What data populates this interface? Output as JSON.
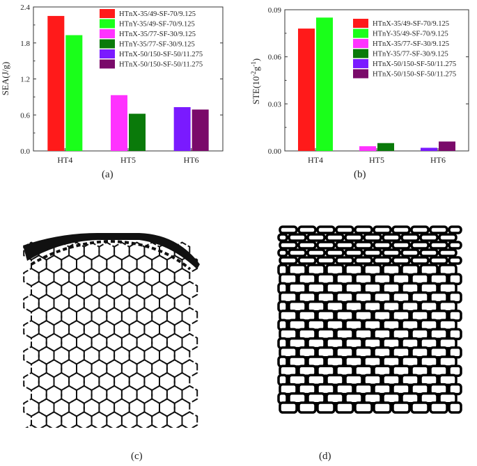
{
  "chart_data": [
    {
      "type": "bar",
      "panel": "(a)",
      "ylabel": "SEA(J/g)",
      "xlabel": "",
      "ylim": [
        0,
        2.4
      ],
      "yticks": [
        "0.0",
        "0.6",
        "1.2",
        "1.8",
        "2.4"
      ],
      "categories": [
        "HT4",
        "HT5",
        "HT6"
      ],
      "series": [
        {
          "name": "HTnX-35/49-SF-70/9.125",
          "color": "#ff1a1a",
          "group": "HT4",
          "value": 2.25
        },
        {
          "name": "HTnY-35/49-SF-70/9.125",
          "color": "#1aff1a",
          "group": "HT4",
          "value": 1.93
        },
        {
          "name": "HTnX-35/77-SF-30/9.125",
          "color": "#ff33ff",
          "group": "HT5",
          "value": 0.93
        },
        {
          "name": "HTnY-35/77-SF-30/9.125",
          "color": "#0a7a0a",
          "group": "HT5",
          "value": 0.62
        },
        {
          "name": "HTnX-50/150-SF-50/11.275",
          "color": "#7a1aff",
          "group": "HT6",
          "value": 0.73
        },
        {
          "name": "HTnX-50/150-SF-50/11.275",
          "color": "#7a0a6a",
          "group": "HT6",
          "value": 0.69
        }
      ]
    },
    {
      "type": "bar",
      "panel": "(b)",
      "ylabel_main": "STE(10",
      "ylabel_sup1": "-2",
      "ylabel_mid": "g",
      "ylabel_sup2": "-1",
      "ylabel_end": ")",
      "xlabel": "",
      "ylim": [
        0,
        0.09
      ],
      "yticks": [
        "0.00",
        "0.03",
        "0.06",
        "0.09"
      ],
      "categories": [
        "HT4",
        "HT5",
        "HT6"
      ],
      "series": [
        {
          "name": "HTnX-35/49-SF-70/9.125",
          "color": "#ff1a1a",
          "group": "HT4",
          "value": 0.078
        },
        {
          "name": "HTnY-35/49-SF-70/9.125",
          "color": "#1aff1a",
          "group": "HT4",
          "value": 0.085
        },
        {
          "name": "HTnX-35/77-SF-30/9.125",
          "color": "#ff33ff",
          "group": "HT5",
          "value": 0.003
        },
        {
          "name": "HTnY-35/77-SF-30/9.125",
          "color": "#0a7a0a",
          "group": "HT5",
          "value": 0.005
        },
        {
          "name": "HTnX-50/150-SF-50/11.275",
          "color": "#7a1aff",
          "group": "HT6",
          "value": 0.002
        },
        {
          "name": "HTnX-50/150-SF-50/11.275",
          "color": "#7a0a6a",
          "group": "HT6",
          "value": 0.006
        }
      ]
    }
  ],
  "figures": {
    "c_label": "(c)",
    "d_label": "(d)"
  }
}
